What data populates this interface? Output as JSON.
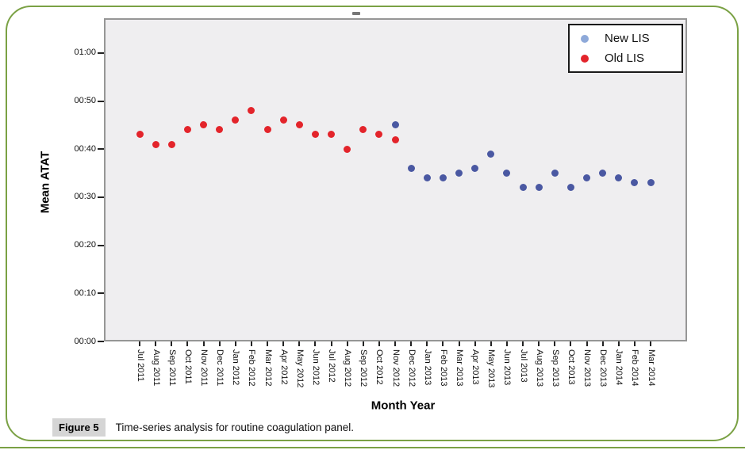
{
  "figure": {
    "caption_label": "Figure 5",
    "caption_text": "Time-series analysis for routine coagulation panel."
  },
  "colors": {
    "frame_green": "#7aa144",
    "plot_background": "#efeef0",
    "plot_border": "#969696",
    "old_lis_red": "#e3242b",
    "new_lis_point_blue": "#4a58a2",
    "new_lis_legend_blue": "#8ea9d9",
    "caption_label_bg": "#d5d5d5"
  },
  "chart_data": {
    "type": "scatter",
    "title": "",
    "xlabel": "Month Year",
    "ylabel": "Mean ATAT",
    "grid": false,
    "legend_position": "top-right inside plot",
    "y_ticks": [
      "00:00",
      "00:10",
      "00:20",
      "00:30",
      "00:40",
      "00:50",
      "01:00"
    ],
    "ylim": [
      "00:00",
      "01:07"
    ],
    "x_categories": [
      "Jul 2011",
      "Aug 2011",
      "Sep 2011",
      "Oct 2011",
      "Nov 2011",
      "Dec 2011",
      "Jan 2012",
      "Feb 2012",
      "Mar 2012",
      "Apr 2012",
      "May 2012",
      "Jun 2012",
      "Jul 2012",
      "Aug 2012",
      "Sep 2012",
      "Oct 2012",
      "Nov 2012",
      "Dec 2012",
      "Jan 2013",
      "Feb 2013",
      "Mar 2013",
      "Apr 2013",
      "May 2013",
      "Jun 2013",
      "Jul 2013",
      "Aug 2013",
      "Sep 2013",
      "Oct 2013",
      "Nov 2013",
      "Dec 2013",
      "Jan 2014",
      "Feb 2014",
      "Mar 2014"
    ],
    "legend": [
      {
        "label": "New LIS",
        "color": "#8ea9d9"
      },
      {
        "label": "Old LIS",
        "color": "#e3242b"
      }
    ],
    "series": [
      {
        "name": "Old LIS",
        "color": "#e3242b",
        "points": [
          {
            "month": "Jul 2011",
            "atat": "00:43"
          },
          {
            "month": "Aug 2011",
            "atat": "00:41"
          },
          {
            "month": "Sep 2011",
            "atat": "00:41"
          },
          {
            "month": "Oct 2011",
            "atat": "00:44"
          },
          {
            "month": "Nov 2011",
            "atat": "00:45"
          },
          {
            "month": "Dec 2011",
            "atat": "00:44"
          },
          {
            "month": "Jan 2012",
            "atat": "00:46"
          },
          {
            "month": "Feb 2012",
            "atat": "00:48"
          },
          {
            "month": "Mar 2012",
            "atat": "00:44"
          },
          {
            "month": "Apr 2012",
            "atat": "00:46"
          },
          {
            "month": "May 2012",
            "atat": "00:45"
          },
          {
            "month": "Jun 2012",
            "atat": "00:43"
          },
          {
            "month": "Jul 2012",
            "atat": "00:43"
          },
          {
            "month": "Aug 2012",
            "atat": "00:40"
          },
          {
            "month": "Sep 2012",
            "atat": "00:44"
          },
          {
            "month": "Oct 2012",
            "atat": "00:43"
          },
          {
            "month": "Nov 2012",
            "atat": "00:42"
          }
        ]
      },
      {
        "name": "New LIS",
        "color": "#4a58a2",
        "points": [
          {
            "month": "Nov 2012",
            "atat": "00:45"
          },
          {
            "month": "Dec 2012",
            "atat": "00:36"
          },
          {
            "month": "Jan 2013",
            "atat": "00:34"
          },
          {
            "month": "Feb 2013",
            "atat": "00:34"
          },
          {
            "month": "Mar 2013",
            "atat": "00:35"
          },
          {
            "month": "Apr 2013",
            "atat": "00:36"
          },
          {
            "month": "May 2013",
            "atat": "00:39"
          },
          {
            "month": "Jun 2013",
            "atat": "00:35"
          },
          {
            "month": "Jul 2013",
            "atat": "00:32"
          },
          {
            "month": "Aug 2013",
            "atat": "00:32"
          },
          {
            "month": "Sep 2013",
            "atat": "00:35"
          },
          {
            "month": "Oct 2013",
            "atat": "00:32"
          },
          {
            "month": "Nov 2013",
            "atat": "00:34"
          },
          {
            "month": "Dec 2013",
            "atat": "00:35"
          },
          {
            "month": "Jan 2014",
            "atat": "00:34"
          },
          {
            "month": "Feb 2014",
            "atat": "00:33"
          },
          {
            "month": "Mar 2014",
            "atat": "00:33"
          }
        ]
      }
    ]
  }
}
